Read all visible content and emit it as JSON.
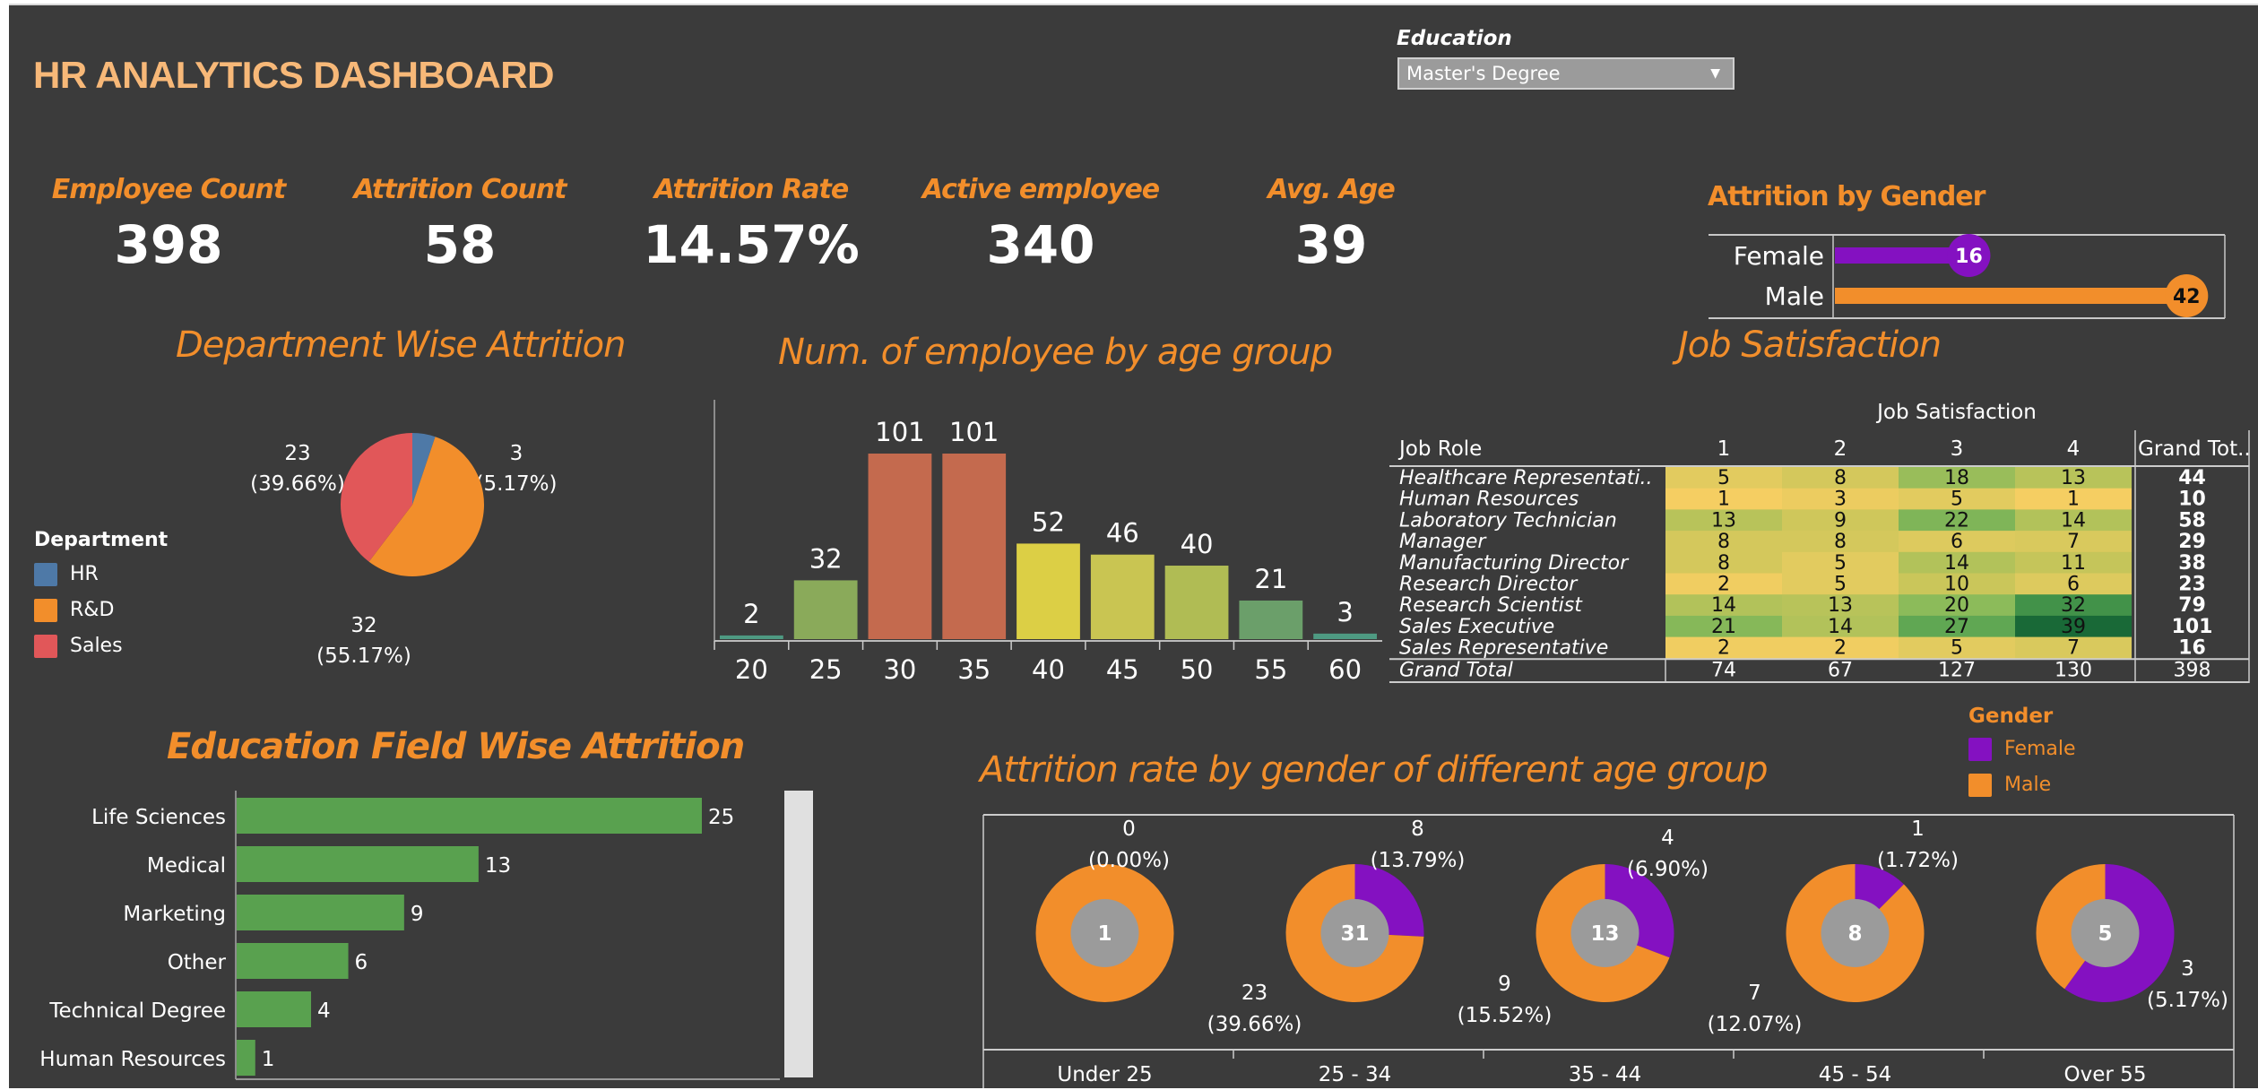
{
  "header": {
    "title": "HR ANALYTICS DASHBOARD",
    "filter_label": "Education",
    "filter_value": "Master's Degree"
  },
  "kpis": [
    {
      "label": "Employee Count",
      "value": "398"
    },
    {
      "label": "Attrition Count",
      "value": "58"
    },
    {
      "label": "Attrition Rate",
      "value": "14.57%"
    },
    {
      "label": "Active employee",
      "value": "340"
    },
    {
      "label": "Avg. Age",
      "value": "39"
    }
  ],
  "colors": {
    "accent": "#f28e2b",
    "female": "#8411c1",
    "male": "#f28e2b",
    "hr": "#4e79a7",
    "rd": "#f28e2b",
    "sales": "#e15759",
    "edu_bar": "#59a14f",
    "donut_center": "#9b9b9b"
  },
  "chart_data": [
    {
      "id": "attrition_by_gender",
      "type": "bar",
      "title": "Attrition by Gender",
      "categories": [
        "Female",
        "Male"
      ],
      "values": [
        16,
        42
      ],
      "colors": [
        "#8411c1",
        "#f28e2b"
      ],
      "xlim": [
        0,
        44
      ]
    },
    {
      "id": "department_wise_attrition",
      "type": "pie",
      "title": "Department Wise Attrition",
      "legend_title": "Department",
      "legend_position": "left",
      "categories": [
        "HR",
        "R&D",
        "Sales"
      ],
      "values": [
        3,
        32,
        23
      ],
      "labels": [
        "3\n(5.17%)",
        "32\n(55.17%)",
        "23\n(39.66%)"
      ],
      "label_lines": [
        [
          "3",
          "(5.17%)"
        ],
        [
          "32",
          "(55.17%)"
        ],
        [
          "23",
          "(39.66%)"
        ]
      ],
      "colors": [
        "#4e79a7",
        "#f28e2b",
        "#e15759"
      ]
    },
    {
      "id": "employees_by_age_group",
      "type": "bar",
      "title": "Num. of employee by age group",
      "categories": [
        "20",
        "25",
        "30",
        "35",
        "40",
        "45",
        "50",
        "55",
        "60"
      ],
      "values": [
        2,
        32,
        101,
        101,
        52,
        46,
        40,
        21,
        3
      ],
      "colors": [
        "#4e9a82",
        "#8aaa5a",
        "#c46a4e",
        "#c46a4e",
        "#dccf45",
        "#c9c552",
        "#b0bc54",
        "#6b9f6a",
        "#4e9a82"
      ],
      "xlabel": "",
      "ylabel": "",
      "ylim": [
        0,
        120
      ]
    },
    {
      "id": "job_satisfaction",
      "type": "heatmap",
      "title": "Job Satisfaction",
      "column_header": "Job Satisfaction",
      "row_header": "Job Role",
      "columns": [
        "1",
        "2",
        "3",
        "4"
      ],
      "total_column_label": "Grand Tot..",
      "rows": [
        {
          "role": "Healthcare Representati..",
          "values": [
            5,
            8,
            18,
            13
          ],
          "total": 44
        },
        {
          "role": "Human Resources",
          "values": [
            1,
            3,
            5,
            1
          ],
          "total": 10
        },
        {
          "role": "Laboratory Technician",
          "values": [
            13,
            9,
            22,
            14
          ],
          "total": 58
        },
        {
          "role": "Manager",
          "values": [
            8,
            8,
            6,
            7
          ],
          "total": 29
        },
        {
          "role": "Manufacturing Director",
          "values": [
            8,
            5,
            14,
            11
          ],
          "total": 38
        },
        {
          "role": "Research Director",
          "values": [
            2,
            5,
            10,
            6
          ],
          "total": 23
        },
        {
          "role": "Research Scientist",
          "values": [
            14,
            13,
            20,
            32
          ],
          "total": 79
        },
        {
          "role": "Sales Executive",
          "values": [
            21,
            14,
            27,
            39
          ],
          "total": 101
        },
        {
          "role": "Sales Representative",
          "values": [
            2,
            2,
            5,
            7
          ],
          "total": 16
        }
      ],
      "grand_total": {
        "label": "Grand Total",
        "values": [
          74,
          67,
          127,
          130
        ],
        "total": 398
      }
    },
    {
      "id": "education_field_attrition",
      "type": "bar",
      "orientation": "horizontal",
      "title": "Education Field Wise Attrition",
      "categories": [
        "Life Sciences",
        "Medical",
        "Marketing",
        "Other",
        "Technical Degree",
        "Human Resources"
      ],
      "values": [
        25,
        13,
        9,
        6,
        4,
        1
      ],
      "xlim": [
        0,
        29
      ]
    },
    {
      "id": "attrition_rate_gender_age",
      "type": "pie",
      "subtype": "donut",
      "title": "Attrition rate by gender of different age group",
      "legend_title": "Gender",
      "legend_position": "top-right",
      "legend": [
        "Female",
        "Male"
      ],
      "groups": [
        {
          "age_group": "Under 25",
          "center_label": "1",
          "female": 0,
          "male": 1,
          "female_label": [
            "0",
            "(0.00%)"
          ],
          "male_label": null
        },
        {
          "age_group": "25 - 34",
          "center_label": "31",
          "female": 8,
          "male": 23,
          "female_label": [
            "8",
            "(13.79%)"
          ],
          "male_label": [
            "23",
            "(39.66%)"
          ]
        },
        {
          "age_group": "35 - 44",
          "center_label": "13",
          "female": 4,
          "male": 9,
          "female_label": [
            "4",
            "(6.90%)"
          ],
          "male_label": [
            "9",
            "(15.52%)"
          ]
        },
        {
          "age_group": "45 - 54",
          "center_label": "8",
          "female": 1,
          "male": 7,
          "female_label": [
            "1",
            "(1.72%)"
          ],
          "male_label": [
            "7",
            "(12.07%)"
          ]
        },
        {
          "age_group": "Over 55",
          "center_label": "5",
          "female": 3,
          "male": 2,
          "female_label": [
            "3",
            "(5.17%)"
          ],
          "male_label": null
        }
      ]
    }
  ]
}
